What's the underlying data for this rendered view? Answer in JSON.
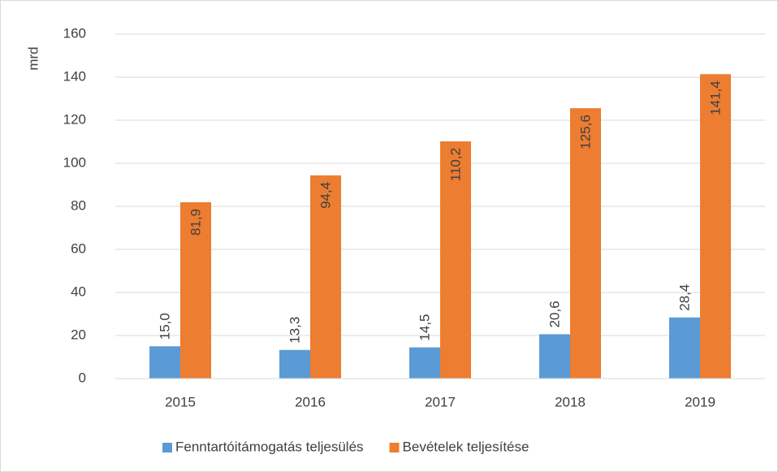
{
  "chart_data": {
    "type": "bar",
    "y_axis_label": "mrd",
    "categories": [
      "2015",
      "2016",
      "2017",
      "2018",
      "2019"
    ],
    "series": [
      {
        "name": "Fenntartóitámogatás teljesülés",
        "color": "#5b9bd5",
        "values": [
          15.0,
          13.3,
          14.5,
          20.6,
          28.4
        ],
        "value_labels": [
          "15,0",
          "13,3",
          "14,5",
          "20,6",
          "28,4"
        ]
      },
      {
        "name": "Bevételek teljesítése",
        "color": "#ed7d31",
        "values": [
          81.9,
          94.4,
          110.2,
          125.6,
          141.4
        ],
        "value_labels": [
          "81,9",
          "94,4",
          "110,2",
          "125,6",
          "141,4"
        ]
      }
    ],
    "ylim": [
      0,
      160
    ],
    "yticks": [
      0,
      20,
      40,
      60,
      80,
      100,
      120,
      140,
      160
    ],
    "grid": true,
    "legend": "bottom"
  }
}
